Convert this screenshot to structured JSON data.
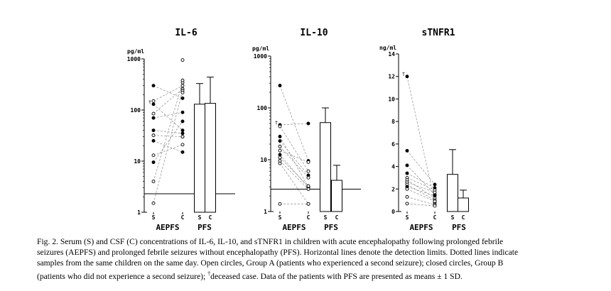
{
  "chart_data": [
    {
      "type": "scatter",
      "title": "IL-6",
      "ylabel": "pg/ml",
      "scale": "log",
      "ylim": [
        1,
        1000
      ],
      "yticks": [
        {
          "v": 1,
          "label": "1"
        },
        {
          "v": 10,
          "label": "10"
        },
        {
          "v": 100,
          "label": "100"
        },
        {
          "v": 1000,
          "label": "1000"
        }
      ],
      "detection_limit": 2.3,
      "groups": {
        "aepfs": "AEPFS",
        "pfs": "PFS",
        "serum": "S",
        "csf": "C"
      },
      "points": [
        {
          "s": 300,
          "c": 170,
          "filled": true
        },
        {
          "s": 150,
          "c": 300,
          "filled": false
        },
        {
          "s": 130,
          "c": 40,
          "filled": true,
          "deceased": true
        },
        {
          "s": 85,
          "c": 260,
          "filled": false
        },
        {
          "s": 70,
          "c": 90,
          "filled": true
        },
        {
          "s": 40,
          "c": 35,
          "filled": true
        },
        {
          "s": 32,
          "c": 30,
          "filled": false
        },
        {
          "s": 25,
          "c": 15,
          "filled": true
        },
        {
          "s": 13,
          "c": 21,
          "filled": false
        },
        {
          "s": 9.5,
          "c": 60,
          "filled": true
        },
        {
          "s": 4,
          "c": 345,
          "filled": false
        },
        {
          "s": 1.5,
          "c": 240,
          "filled": false
        }
      ],
      "extra_csf": [
        {
          "c": 950,
          "filled": false
        },
        {
          "c": 380,
          "filled": false
        },
        {
          "c": 220,
          "filled": false
        },
        {
          "c": 30,
          "filled": false
        }
      ],
      "pfs_bars": {
        "s_mean": 130,
        "s_sd_top": 330,
        "c_mean": 135,
        "c_sd_top": 440
      }
    },
    {
      "type": "scatter",
      "title": "IL-10",
      "ylabel": "pg/ml",
      "scale": "log",
      "ylim": [
        1,
        1000
      ],
      "yticks": [
        {
          "v": 1,
          "label": "1"
        },
        {
          "v": 10,
          "label": "10"
        },
        {
          "v": 100,
          "label": "100"
        },
        {
          "v": 1000,
          "label": "1000"
        }
      ],
      "detection_limit": 2.7,
      "groups": {
        "aepfs": "AEPFS",
        "pfs": "PFS",
        "serum": "S",
        "csf": "C"
      },
      "points": [
        {
          "s": 270,
          "c": 9.5,
          "filled": true
        },
        {
          "s": 47,
          "c": 50,
          "filled": true,
          "deceased": true
        },
        {
          "s": 44,
          "c": 6,
          "filled": false
        },
        {
          "s": 28,
          "c": 3,
          "filled": true
        },
        {
          "s": 23,
          "c": 5,
          "filled": true
        },
        {
          "s": 18,
          "c": 4.5,
          "filled": false
        },
        {
          "s": 15,
          "c": 9,
          "filled": false
        },
        {
          "s": 12.5,
          "c": 2.9,
          "filled": true
        },
        {
          "s": 11,
          "c": 3.1,
          "filled": false
        },
        {
          "s": 9.5,
          "c": 2.7,
          "filled": false
        },
        {
          "s": 8.5,
          "c": 1.4,
          "filled": false
        },
        {
          "s": 1.4,
          "c": 1.4,
          "filled": false
        }
      ],
      "extra_csf": [],
      "pfs_bars": {
        "s_mean": 52,
        "s_sd_top": 100,
        "c_mean": 4,
        "c_sd_top": 7.8
      }
    },
    {
      "type": "scatter",
      "title": "sTNFR1",
      "ylabel": "ng/ml",
      "scale": "linear",
      "ylim": [
        0,
        14
      ],
      "yticks": [
        {
          "v": 0,
          "label": "0"
        },
        {
          "v": 2,
          "label": "2"
        },
        {
          "v": 4,
          "label": "4"
        },
        {
          "v": 6,
          "label": "6"
        },
        {
          "v": 8,
          "label": "8"
        },
        {
          "v": 10,
          "label": "10"
        },
        {
          "v": 12,
          "label": "12"
        },
        {
          "v": 14,
          "label": "14"
        }
      ],
      "detection_limit": null,
      "groups": {
        "aepfs": "AEPFS",
        "pfs": "PFS",
        "serum": "S",
        "csf": "C"
      },
      "points": [
        {
          "s": 12,
          "c": 0.8,
          "filled": true,
          "deceased": true
        },
        {
          "s": 5.4,
          "c": 2.4,
          "filled": true
        },
        {
          "s": 4.1,
          "c": 1.5,
          "filled": true
        },
        {
          "s": 3.4,
          "c": 2.1,
          "filled": true
        },
        {
          "s": 3.0,
          "c": 1.9,
          "filled": false
        },
        {
          "s": 2.8,
          "c": 1.2,
          "filled": false
        },
        {
          "s": 2.6,
          "c": 1.7,
          "filled": false
        },
        {
          "s": 2.4,
          "c": 1.0,
          "filled": false
        },
        {
          "s": 2.2,
          "c": 1.4,
          "filled": true
        },
        {
          "s": 2.0,
          "c": 0.9,
          "filled": false
        },
        {
          "s": 1.3,
          "c": 0.6,
          "filled": false
        },
        {
          "s": 0.7,
          "c": 0.5,
          "filled": false
        }
      ],
      "extra_csf": [],
      "pfs_bars": {
        "s_mean": 3.3,
        "s_sd_top": 5.5,
        "c_mean": 1.2,
        "c_sd_top": 1.9
      }
    }
  ],
  "dagger": "†",
  "caption": {
    "line1": "Fig. 2. Serum (S) and CSF (C) concentrations of IL-6, IL-10, and sTNFR1 in children with acute encephalopathy following prolonged febrile",
    "line2": "seizures (AEPFS) and prolonged febrile seizures without encephalopathy (PFS). Horizontal lines denote the detection limits. Dotted lines indicate",
    "line3": "samples from the same children on the same day. Open circles, Group A (patients who experienced a second seizure); closed circles, Group B",
    "line4_a": "(patients who did not experience a second seizure); ",
    "dagger": "†",
    "line4_b": "deceased case. Data of the patients with PFS are presented as means ± 1 SD."
  }
}
